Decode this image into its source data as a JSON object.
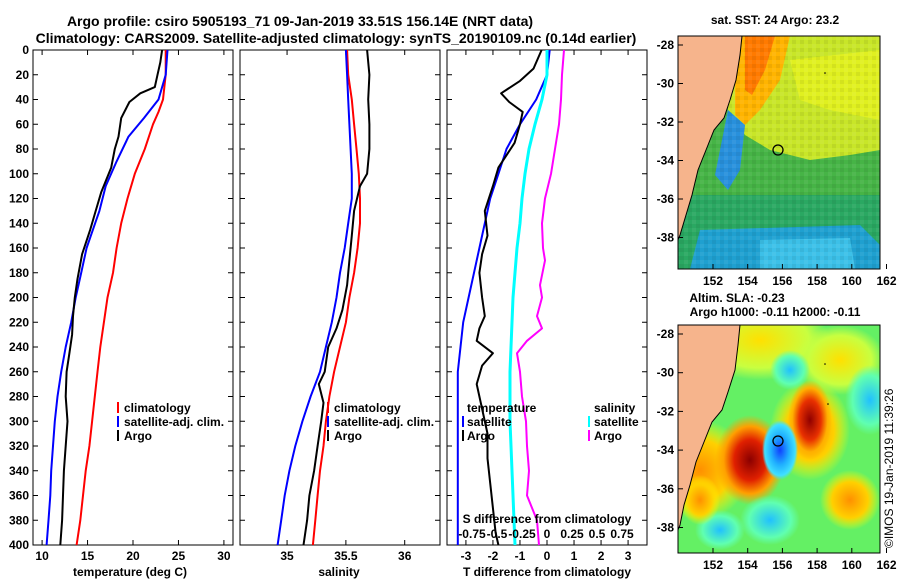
{
  "title": {
    "line1": "Argo profile: csiro 5905193_71 09-Jan-2019 33.51S 156.14E (NRT data)",
    "line2": "Climatology: CARS2009. Satellite-adjusted climatology: synTS_20190109.nc (0.14d earlier)"
  },
  "chart_data": [
    {
      "type": "line",
      "panel": "temperature",
      "xlabel": "temperature (deg C)",
      "ylabel": "",
      "xlim": [
        9,
        31
      ],
      "ylim": [
        400,
        0
      ],
      "xticks": [
        "10",
        "15",
        "20",
        "25",
        "30"
      ],
      "yticks": [
        "0",
        "20",
        "40",
        "60",
        "80",
        "100",
        "120",
        "140",
        "160",
        "180",
        "200",
        "220",
        "240",
        "260",
        "280",
        "300",
        "320",
        "340",
        "360",
        "380",
        "400"
      ],
      "legend": [
        "climatology",
        "satellite-adj. clim.",
        "Argo"
      ],
      "series": [
        {
          "name": "climatology",
          "color": "#ff0000",
          "points": [
            [
              23.6,
              0
            ],
            [
              23.6,
              20
            ],
            [
              23.3,
              40
            ],
            [
              22.8,
              50
            ],
            [
              22.2,
              60
            ],
            [
              21.3,
              80
            ],
            [
              20.2,
              100
            ],
            [
              19.4,
              120
            ],
            [
              18.7,
              140
            ],
            [
              18.2,
              160
            ],
            [
              17.8,
              180
            ],
            [
              17.2,
              200
            ],
            [
              16.8,
              220
            ],
            [
              16.4,
              240
            ],
            [
              16.1,
              260
            ],
            [
              15.8,
              280
            ],
            [
              15.5,
              300
            ],
            [
              15.2,
              320
            ],
            [
              14.8,
              340
            ],
            [
              14.5,
              360
            ],
            [
              14.2,
              380
            ],
            [
              13.8,
              400
            ]
          ]
        },
        {
          "name": "satellite-adj. clim.",
          "color": "#0000ff",
          "points": [
            [
              23.8,
              0
            ],
            [
              23.6,
              20
            ],
            [
              22.8,
              40
            ],
            [
              21.2,
              55
            ],
            [
              19.5,
              70
            ],
            [
              18.2,
              90
            ],
            [
              17.0,
              110
            ],
            [
              16.3,
              130
            ],
            [
              15.6,
              145
            ],
            [
              14.9,
              160
            ],
            [
              14.3,
              180
            ],
            [
              13.7,
              200
            ],
            [
              13.2,
              220
            ],
            [
              12.6,
              240
            ],
            [
              12.1,
              260
            ],
            [
              11.7,
              280
            ],
            [
              11.4,
              300
            ],
            [
              11.2,
              320
            ],
            [
              11.0,
              340
            ],
            [
              10.9,
              360
            ],
            [
              10.7,
              380
            ],
            [
              10.5,
              400
            ]
          ]
        },
        {
          "name": "Argo",
          "color": "#000000",
          "points": [
            [
              23.2,
              0
            ],
            [
              23.0,
              10
            ],
            [
              22.7,
              20
            ],
            [
              22.4,
              30
            ],
            [
              20.8,
              35
            ],
            [
              19.6,
              42
            ],
            [
              18.7,
              55
            ],
            [
              18.4,
              70
            ],
            [
              18.0,
              80
            ],
            [
              17.6,
              95
            ],
            [
              16.5,
              115
            ],
            [
              15.9,
              130
            ],
            [
              15.3,
              145
            ],
            [
              14.4,
              165
            ],
            [
              13.9,
              185
            ],
            [
              13.6,
              200
            ],
            [
              13.4,
              215
            ],
            [
              13.3,
              230
            ],
            [
              13.0,
              245
            ],
            [
              12.7,
              260
            ],
            [
              12.6,
              280
            ],
            [
              12.8,
              300
            ],
            [
              12.6,
              320
            ],
            [
              12.4,
              340
            ],
            [
              12.3,
              360
            ],
            [
              12.2,
              380
            ],
            [
              12.0,
              400
            ]
          ]
        }
      ]
    },
    {
      "type": "line",
      "panel": "salinity",
      "xlabel": "salinity",
      "xlim": [
        34.6,
        36.3
      ],
      "ylim": [
        400,
        0
      ],
      "xticks": [
        "35",
        "35.5",
        "36"
      ],
      "legend": [
        "climatology",
        "satellite-adj. clim.",
        "Argo"
      ],
      "series": [
        {
          "name": "climatology",
          "color": "#ff0000",
          "points": [
            [
              35.51,
              0
            ],
            [
              35.52,
              20
            ],
            [
              35.55,
              40
            ],
            [
              35.57,
              60
            ],
            [
              35.59,
              80
            ],
            [
              35.61,
              100
            ],
            [
              35.62,
              120
            ],
            [
              35.62,
              140
            ],
            [
              35.6,
              160
            ],
            [
              35.57,
              180
            ],
            [
              35.53,
              200
            ],
            [
              35.5,
              220
            ],
            [
              35.45,
              240
            ],
            [
              35.4,
              260
            ],
            [
              35.36,
              280
            ],
            [
              35.33,
              300
            ],
            [
              35.31,
              320
            ],
            [
              35.28,
              340
            ],
            [
              35.26,
              360
            ],
            [
              35.24,
              380
            ],
            [
              35.22,
              400
            ]
          ]
        },
        {
          "name": "satellite-adj. clim.",
          "color": "#0000ff",
          "points": [
            [
              35.5,
              0
            ],
            [
              35.51,
              20
            ],
            [
              35.52,
              40
            ],
            [
              35.53,
              60
            ],
            [
              35.54,
              80
            ],
            [
              35.55,
              100
            ],
            [
              35.55,
              120
            ],
            [
              35.52,
              140
            ],
            [
              35.49,
              160
            ],
            [
              35.45,
              180
            ],
            [
              35.42,
              200
            ],
            [
              35.38,
              220
            ],
            [
              35.33,
              240
            ],
            [
              35.28,
              260
            ],
            [
              35.2,
              280
            ],
            [
              35.13,
              300
            ],
            [
              35.07,
              320
            ],
            [
              35.02,
              340
            ],
            [
              34.98,
              360
            ],
            [
              34.95,
              380
            ],
            [
              34.92,
              400
            ]
          ]
        },
        {
          "name": "Argo",
          "color": "#000000",
          "points": [
            [
              35.68,
              0
            ],
            [
              35.7,
              20
            ],
            [
              35.69,
              40
            ],
            [
              35.7,
              60
            ],
            [
              35.7,
              80
            ],
            [
              35.68,
              100
            ],
            [
              35.62,
              110
            ],
            [
              35.57,
              130
            ],
            [
              35.55,
              150
            ],
            [
              35.53,
              170
            ],
            [
              35.51,
              190
            ],
            [
              35.47,
              210
            ],
            [
              35.42,
              225
            ],
            [
              35.35,
              240
            ],
            [
              35.32,
              260
            ],
            [
              35.27,
              270
            ],
            [
              35.31,
              285
            ],
            [
              35.29,
              300
            ],
            [
              35.26,
              320
            ],
            [
              35.23,
              340
            ],
            [
              35.19,
              360
            ],
            [
              35.17,
              380
            ],
            [
              35.14,
              400
            ]
          ]
        }
      ]
    },
    {
      "type": "line",
      "panel": "difference",
      "xlabel": "T difference from climatology",
      "xlim": [
        -3.7,
        3.7
      ],
      "ylim": [
        400,
        0
      ],
      "xticks": [
        "-3",
        "-2",
        "-1",
        "0",
        "1",
        "2",
        "3"
      ],
      "secondary_axis_label": "S difference from climatology",
      "secondary_xticks": [
        "-0.75",
        "-0.5",
        "-0.25",
        "0",
        "0.25",
        "0.5",
        "0.75"
      ],
      "legend": [
        "temperature",
        "satellite",
        "Argo",
        "salinity",
        "satellite",
        "Argo"
      ],
      "series": [
        {
          "name": "temperature satellite",
          "color": "#0000ff",
          "points": [
            [
              0.1,
              0
            ],
            [
              0.0,
              20
            ],
            [
              -0.4,
              40
            ],
            [
              -1.0,
              60
            ],
            [
              -1.5,
              80
            ],
            [
              -1.8,
              100
            ],
            [
              -2.1,
              120
            ],
            [
              -2.3,
              140
            ],
            [
              -2.5,
              160
            ],
            [
              -2.7,
              180
            ],
            [
              -2.9,
              200
            ],
            [
              -3.1,
              220
            ],
            [
              -3.2,
              240
            ],
            [
              -3.3,
              260
            ],
            [
              -3.3,
              280
            ],
            [
              -3.3,
              300
            ],
            [
              -3.3,
              320
            ],
            [
              -3.3,
              340
            ],
            [
              -3.3,
              360
            ],
            [
              -3.3,
              380
            ],
            [
              -3.3,
              400
            ]
          ]
        },
        {
          "name": "temperature Argo",
          "color": "#000000",
          "points": [
            [
              -0.2,
              0
            ],
            [
              -0.5,
              15
            ],
            [
              -1.0,
              25
            ],
            [
              -1.7,
              35
            ],
            [
              -1.4,
              42
            ],
            [
              -0.9,
              50
            ],
            [
              -1.0,
              60
            ],
            [
              -1.2,
              75
            ],
            [
              -1.8,
              95
            ],
            [
              -2.0,
              110
            ],
            [
              -2.3,
              130
            ],
            [
              -2.2,
              150
            ],
            [
              -2.4,
              165
            ],
            [
              -2.5,
              180
            ],
            [
              -2.4,
              200
            ],
            [
              -2.3,
              215
            ],
            [
              -2.5,
              225
            ],
            [
              -2.6,
              235
            ],
            [
              -2.0,
              245
            ],
            [
              -2.4,
              255
            ],
            [
              -2.6,
              270
            ],
            [
              -2.4,
              290
            ],
            [
              -2.2,
              310
            ],
            [
              -2.2,
              330
            ],
            [
              -2.1,
              350
            ],
            [
              -2.0,
              370
            ],
            [
              -1.9,
              390
            ],
            [
              -1.8,
              400
            ]
          ]
        },
        {
          "name": "salinity satellite",
          "color": "#00ffff",
          "points": [
            [
              0.0,
              0
            ],
            [
              0.0,
              20
            ],
            [
              -0.05,
              40
            ],
            [
              -0.12,
              60
            ],
            [
              -0.18,
              80
            ],
            [
              -0.22,
              100
            ],
            [
              -0.25,
              120
            ],
            [
              -0.27,
              140
            ],
            [
              -0.3,
              160
            ],
            [
              -0.32,
              180
            ],
            [
              -0.34,
              200
            ],
            [
              -0.35,
              220
            ],
            [
              -0.36,
              240
            ],
            [
              -0.37,
              260
            ],
            [
              -0.37,
              280
            ],
            [
              -0.37,
              300
            ],
            [
              -0.36,
              320
            ],
            [
              -0.35,
              340
            ],
            [
              -0.34,
              360
            ],
            [
              -0.33,
              380
            ],
            [
              -0.32,
              400
            ]
          ]
        },
        {
          "name": "salinity Argo",
          "color": "#ff00ff",
          "points": [
            [
              0.17,
              0
            ],
            [
              0.15,
              20
            ],
            [
              0.14,
              40
            ],
            [
              0.12,
              60
            ],
            [
              0.08,
              80
            ],
            [
              0.04,
              100
            ],
            [
              -0.02,
              120
            ],
            [
              -0.05,
              140
            ],
            [
              -0.04,
              160
            ],
            [
              -0.02,
              170
            ],
            [
              -0.07,
              190
            ],
            [
              -0.05,
              200
            ],
            [
              -0.1,
              215
            ],
            [
              -0.05,
              225
            ],
            [
              -0.2,
              235
            ],
            [
              -0.3,
              245
            ],
            [
              -0.27,
              260
            ],
            [
              -0.25,
              280
            ],
            [
              -0.21,
              300
            ],
            [
              -0.2,
              320
            ],
            [
              -0.18,
              340
            ],
            [
              -0.2,
              360
            ],
            [
              -0.1,
              380
            ],
            [
              -0.08,
              400
            ]
          ]
        }
      ]
    }
  ],
  "maps": {
    "sst": {
      "title": "sat. SST: 24 Argo: 23.2",
      "yticks": [
        "-28",
        "-30",
        "-32",
        "-34",
        "-36",
        "-38"
      ],
      "xticks": [
        "152",
        "154",
        "156",
        "158",
        "160",
        "162"
      ]
    },
    "sla": {
      "title1": "Altim. SLA: -0.23",
      "title2": "Argo h1000: -0.11 h2000: -0.11",
      "yticks": [
        "-28",
        "-30",
        "-32",
        "-34",
        "-36",
        "-38"
      ],
      "xticks": [
        "152",
        "154",
        "156",
        "158",
        "160",
        "162"
      ]
    }
  },
  "watermark": "©IMOS 19-Jan-2019 11:39:26",
  "colors": {
    "red": "#ff0000",
    "blue": "#0000ff",
    "cyan": "#00ffff",
    "magenta": "#ff00ff",
    "land": "#f6b48c"
  }
}
